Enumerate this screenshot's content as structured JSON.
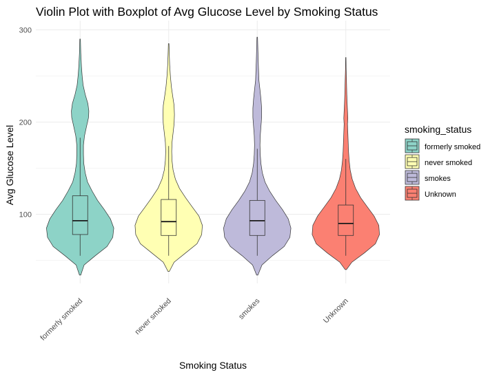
{
  "chart_data": {
    "type": "violin",
    "title": "Violin Plot with Boxplot of Avg Glucose Level by Smoking Status",
    "xlabel": "Smoking Status",
    "ylabel": "Avg Glucose Level",
    "categories": [
      "formerly smoked",
      "never smoked",
      "smokes",
      "Unknown"
    ],
    "y_ticks": [
      100,
      200,
      300
    ],
    "ylim": [
      25,
      310
    ],
    "grid": true,
    "legend": {
      "title": "smoking_status",
      "position": "right",
      "items": [
        "formerly smoked",
        "never smoked",
        "smokes",
        "Unknown"
      ]
    },
    "colors": [
      "#8dd3c7",
      "#ffffb3",
      "#bebada",
      "#fb8072"
    ],
    "series": [
      {
        "name": "formerly smoked",
        "box": {
          "min": 55,
          "q1": 78,
          "median": 93,
          "q3": 120,
          "max": 183
        },
        "range": [
          34,
          290
        ],
        "density": [
          [
            34,
            0.02
          ],
          [
            45,
            0.12
          ],
          [
            55,
            0.45
          ],
          [
            65,
            0.8
          ],
          [
            75,
            0.97
          ],
          [
            85,
            1.0
          ],
          [
            95,
            0.9
          ],
          [
            105,
            0.72
          ],
          [
            115,
            0.52
          ],
          [
            125,
            0.36
          ],
          [
            135,
            0.22
          ],
          [
            145,
            0.15
          ],
          [
            155,
            0.11
          ],
          [
            165,
            0.1
          ],
          [
            175,
            0.1
          ],
          [
            185,
            0.13
          ],
          [
            195,
            0.19
          ],
          [
            205,
            0.25
          ],
          [
            212,
            0.26
          ],
          [
            220,
            0.23
          ],
          [
            230,
            0.15
          ],
          [
            240,
            0.09
          ],
          [
            250,
            0.06
          ],
          [
            260,
            0.04
          ],
          [
            275,
            0.02
          ],
          [
            290,
            0.01
          ]
        ]
      },
      {
        "name": "never smoked",
        "box": {
          "min": 55,
          "q1": 77,
          "median": 92,
          "q3": 116,
          "max": 174
        },
        "range": [
          38,
          285
        ],
        "density": [
          [
            38,
            0.02
          ],
          [
            48,
            0.16
          ],
          [
            58,
            0.5
          ],
          [
            68,
            0.84
          ],
          [
            78,
            0.98
          ],
          [
            88,
            1.0
          ],
          [
            98,
            0.9
          ],
          [
            108,
            0.7
          ],
          [
            118,
            0.5
          ],
          [
            128,
            0.32
          ],
          [
            138,
            0.2
          ],
          [
            148,
            0.13
          ],
          [
            158,
            0.1
          ],
          [
            168,
            0.09
          ],
          [
            178,
            0.1
          ],
          [
            188,
            0.13
          ],
          [
            198,
            0.16
          ],
          [
            208,
            0.17
          ],
          [
            218,
            0.16
          ],
          [
            228,
            0.12
          ],
          [
            238,
            0.08
          ],
          [
            250,
            0.05
          ],
          [
            262,
            0.03
          ],
          [
            272,
            0.02
          ],
          [
            285,
            0.01
          ]
        ]
      },
      {
        "name": "smokes",
        "box": {
          "min": 55,
          "q1": 77,
          "median": 93,
          "q3": 115,
          "max": 171
        },
        "range": [
          34,
          292
        ],
        "density": [
          [
            34,
            0.02
          ],
          [
            45,
            0.14
          ],
          [
            55,
            0.45
          ],
          [
            65,
            0.8
          ],
          [
            75,
            0.97
          ],
          [
            85,
            1.0
          ],
          [
            95,
            0.92
          ],
          [
            105,
            0.75
          ],
          [
            115,
            0.55
          ],
          [
            125,
            0.37
          ],
          [
            135,
            0.23
          ],
          [
            145,
            0.15
          ],
          [
            155,
            0.11
          ],
          [
            165,
            0.09
          ],
          [
            175,
            0.08
          ],
          [
            185,
            0.09
          ],
          [
            195,
            0.11
          ],
          [
            205,
            0.13
          ],
          [
            215,
            0.13
          ],
          [
            225,
            0.11
          ],
          [
            235,
            0.08
          ],
          [
            245,
            0.05
          ],
          [
            255,
            0.04
          ],
          [
            265,
            0.03
          ],
          [
            278,
            0.02
          ],
          [
            292,
            0.01
          ]
        ]
      },
      {
        "name": "Unknown",
        "box": {
          "min": 55,
          "q1": 77,
          "median": 90,
          "q3": 110,
          "max": 160
        },
        "range": [
          40,
          270
        ],
        "density": [
          [
            40,
            0.02
          ],
          [
            48,
            0.18
          ],
          [
            58,
            0.55
          ],
          [
            68,
            0.88
          ],
          [
            78,
            1.0
          ],
          [
            88,
            0.98
          ],
          [
            98,
            0.84
          ],
          [
            108,
            0.64
          ],
          [
            118,
            0.44
          ],
          [
            128,
            0.29
          ],
          [
            138,
            0.19
          ],
          [
            148,
            0.13
          ],
          [
            158,
            0.1
          ],
          [
            168,
            0.08
          ],
          [
            178,
            0.07
          ],
          [
            188,
            0.06
          ],
          [
            198,
            0.05
          ],
          [
            204,
            0.06
          ],
          [
            212,
            0.05
          ],
          [
            220,
            0.04
          ],
          [
            230,
            0.03
          ],
          [
            245,
            0.02
          ],
          [
            258,
            0.01
          ],
          [
            270,
            0.005
          ]
        ]
      }
    ]
  }
}
